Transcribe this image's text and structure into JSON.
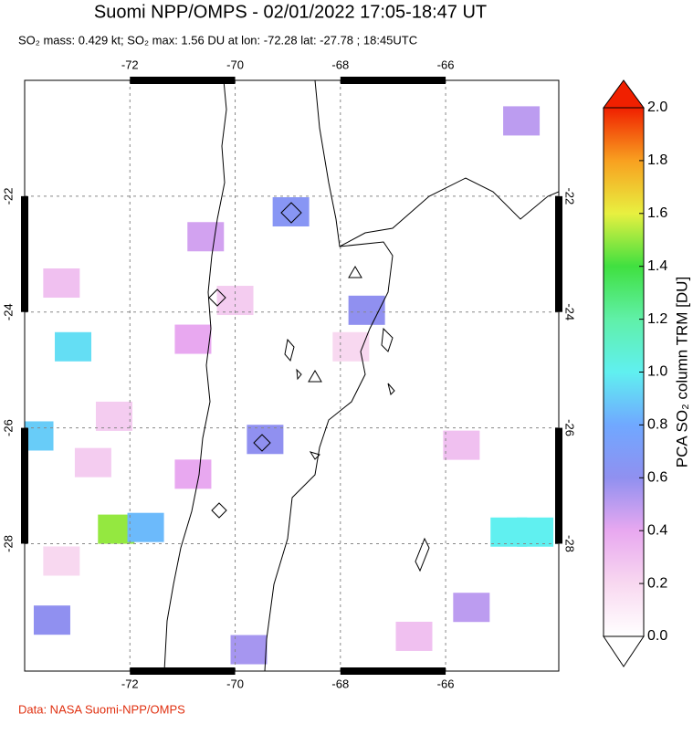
{
  "chart_data": {
    "type": "map",
    "title": "Suomi NPP/OMPS - 02/01/2022 17:05-18:47 UT",
    "subtitle": "SO₂ mass: 0.429 kt; SO₂ max: 1.56 DU at lon: -72.28 lat: -27.78 ; 18:45UTC",
    "xlim": [
      -74,
      -63.85
    ],
    "ylim": [
      -20,
      -30.2
    ],
    "xticks": [
      -72,
      -70,
      -68,
      -66
    ],
    "yticks": [
      -22,
      -24,
      -26,
      -28
    ],
    "grid": true,
    "pixels": [
      {
        "lon": -68.94,
        "lat": -22.27,
        "value": 0.65
      },
      {
        "lon": -67.5,
        "lat": -23.97,
        "value": 0.6
      },
      {
        "lon": -73.08,
        "lat": -24.6,
        "value": 0.95
      },
      {
        "lon": -73.8,
        "lat": -26.14,
        "value": 0.9
      },
      {
        "lon": -72.26,
        "lat": -27.75,
        "value": 1.5
      },
      {
        "lon": -71.7,
        "lat": -27.72,
        "value": 0.85
      },
      {
        "lon": -64.8,
        "lat": -27.8,
        "value": 1.0
      },
      {
        "lon": -64.3,
        "lat": -27.8,
        "value": 1.0
      },
      {
        "lon": -69.43,
        "lat": -26.2,
        "value": 0.6
      },
      {
        "lon": -70.56,
        "lat": -22.7,
        "value": 0.45
      },
      {
        "lon": -64.56,
        "lat": -20.7,
        "value": 0.5
      },
      {
        "lon": -73.48,
        "lat": -29.32,
        "value": 0.6
      },
      {
        "lon": -69.74,
        "lat": -29.83,
        "value": 0.55
      },
      {
        "lon": -65.51,
        "lat": -29.1,
        "value": 0.5
      },
      {
        "lon": -70.8,
        "lat": -24.47,
        "value": 0.4
      },
      {
        "lon": -70.8,
        "lat": -26.8,
        "value": 0.4
      },
      {
        "lon": -73.3,
        "lat": -23.5,
        "value": 0.3
      },
      {
        "lon": -72.3,
        "lat": -25.8,
        "value": 0.25
      },
      {
        "lon": -65.7,
        "lat": -26.3,
        "value": 0.3
      },
      {
        "lon": -67.8,
        "lat": -24.6,
        "value": 0.2
      },
      {
        "lon": -70.0,
        "lat": -23.8,
        "value": 0.25
      },
      {
        "lon": -66.6,
        "lat": -29.6,
        "value": 0.3
      },
      {
        "lon": -72.7,
        "lat": -26.6,
        "value": 0.25
      },
      {
        "lon": -73.3,
        "lat": -28.3,
        "value": 0.2
      }
    ],
    "colorbar": {
      "label": "PCA SO₂ column TRM [DU]",
      "lim": [
        0,
        2.0
      ],
      "ticks": [
        {
          "value": 0,
          "label": "0.0"
        },
        0.2,
        0.4,
        0.6,
        0.8,
        {
          "value": 1.0,
          "label": "1.0"
        },
        1.2,
        1.4,
        1.6,
        1.8,
        {
          "value": 2.0,
          "label": "2.0"
        }
      ]
    },
    "source": "Data: NASA Suomi-NPP/OMPS"
  }
}
